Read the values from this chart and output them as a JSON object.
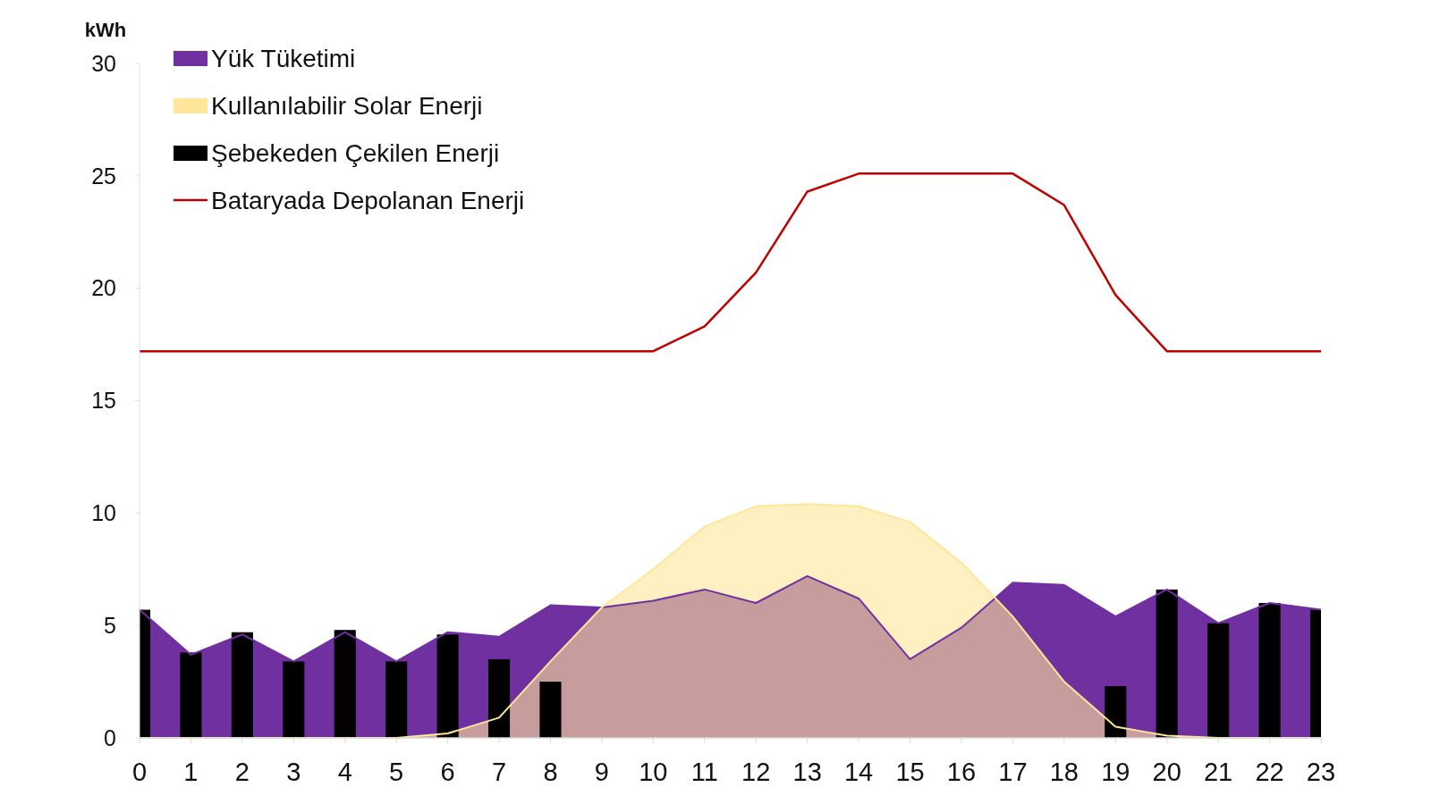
{
  "chart_data": {
    "type": "area",
    "ylabel": "kWh",
    "x": [
      0,
      1,
      2,
      3,
      4,
      5,
      6,
      7,
      8,
      9,
      10,
      11,
      12,
      13,
      14,
      15,
      16,
      17,
      18,
      19,
      20,
      21,
      22,
      23
    ],
    "xlim": [
      0,
      23
    ],
    "xticks": [
      0,
      1,
      2,
      3,
      4,
      5,
      6,
      7,
      8,
      9,
      10,
      11,
      12,
      13,
      14,
      15,
      16,
      17,
      18,
      19,
      20,
      21,
      22,
      23
    ],
    "ylim": [
      0,
      30
    ],
    "yticks": [
      0,
      5,
      10,
      15,
      20,
      25,
      30
    ],
    "grid": false,
    "legend": "top left",
    "series": [
      {
        "name": "Yük Tüketimi",
        "color": "#7030a0",
        "values": [
          5.7,
          3.7,
          4.6,
          3.4,
          4.7,
          3.4,
          4.7,
          4.5,
          5.9,
          5.8,
          6.1,
          6.6,
          6.0,
          7.2,
          6.2,
          3.5,
          4.9,
          6.9,
          6.8,
          5.4,
          6.6,
          5.1,
          6.0,
          5.7
        ]
      },
      {
        "name": "Kullanılabilir Solar Enerji",
        "color": "#ffe699",
        "values": [
          0,
          0,
          0,
          0,
          0,
          0,
          0.2,
          0.9,
          3.4,
          5.8,
          7.5,
          9.4,
          10.3,
          10.4,
          10.3,
          9.6,
          7.8,
          5.4,
          2.5,
          0.5,
          0.1,
          0,
          0,
          0
        ]
      },
      {
        "name": "Şebekeden Çekilen Enerji",
        "type": "bar",
        "color": "#000000",
        "values": [
          5.7,
          3.8,
          4.7,
          3.4,
          4.8,
          3.4,
          4.6,
          3.5,
          2.5,
          null,
          null,
          null,
          null,
          null,
          null,
          null,
          null,
          null,
          null,
          2.3,
          6.6,
          5.1,
          6.0,
          5.7
        ]
      },
      {
        "name": "Bataryada Depolanan Enerji",
        "type": "line",
        "color": "#c00000",
        "values": [
          17.2,
          17.2,
          17.2,
          17.2,
          17.2,
          17.2,
          17.2,
          17.2,
          17.2,
          17.2,
          17.2,
          18.3,
          20.7,
          24.3,
          25.1,
          25.1,
          25.1,
          25.1,
          23.7,
          19.7,
          17.2,
          17.2,
          17.2,
          17.2
        ]
      }
    ]
  }
}
